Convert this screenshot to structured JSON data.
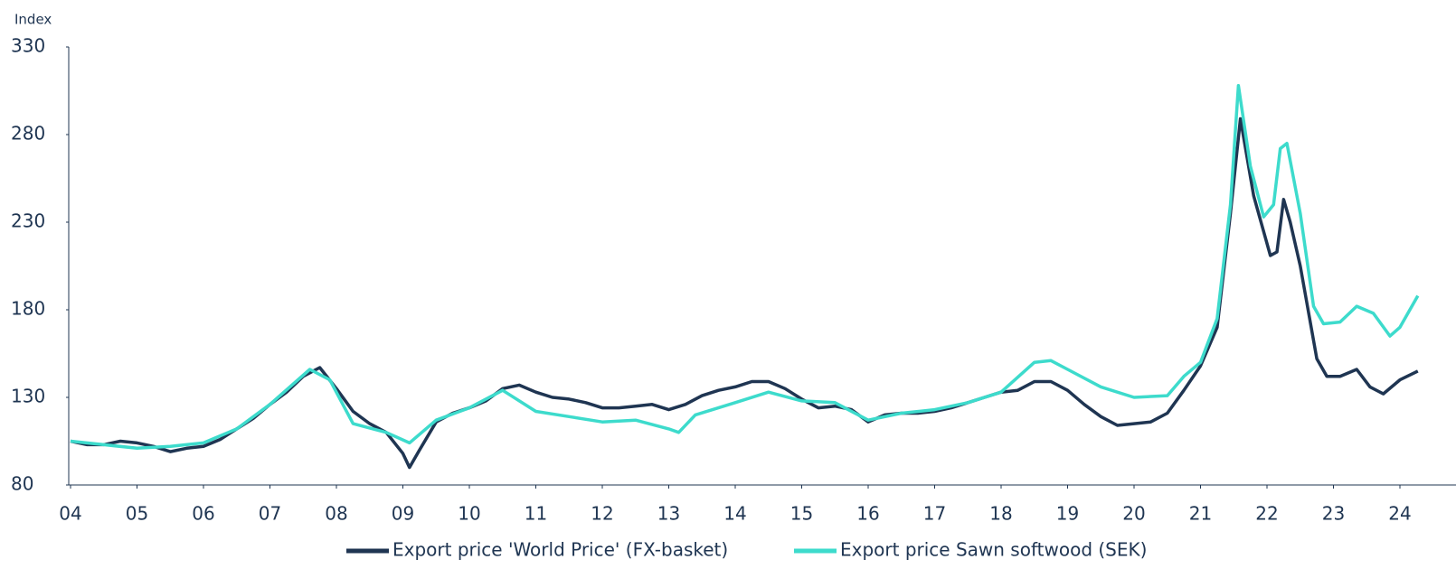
{
  "chart_data": {
    "type": "line",
    "y_axis_label": "Index",
    "ylim": [
      80,
      330
    ],
    "yticks": [
      80,
      130,
      180,
      230,
      280,
      330
    ],
    "xlim": [
      2004,
      2024.3
    ],
    "xticks": [
      {
        "value": 2004,
        "label": "04"
      },
      {
        "value": 2005,
        "label": "05"
      },
      {
        "value": 2006,
        "label": "06"
      },
      {
        "value": 2007,
        "label": "07"
      },
      {
        "value": 2008,
        "label": "08"
      },
      {
        "value": 2009,
        "label": "09"
      },
      {
        "value": 2010,
        "label": "10"
      },
      {
        "value": 2011,
        "label": "11"
      },
      {
        "value": 2012,
        "label": "12"
      },
      {
        "value": 2013,
        "label": "13"
      },
      {
        "value": 2014,
        "label": "14"
      },
      {
        "value": 2015,
        "label": "15"
      },
      {
        "value": 2016,
        "label": "16"
      },
      {
        "value": 2017,
        "label": "17"
      },
      {
        "value": 2018,
        "label": "18"
      },
      {
        "value": 2019,
        "label": "19"
      },
      {
        "value": 2020,
        "label": "20"
      },
      {
        "value": 2021,
        "label": "21"
      },
      {
        "value": 2022,
        "label": "22"
      },
      {
        "value": 2023,
        "label": "23"
      },
      {
        "value": 2024,
        "label": "24"
      }
    ],
    "legend": "bottom",
    "series": [
      {
        "name": "Export price 'World Price' (FX-basket)",
        "color": "#1f3552",
        "x": [
          2004,
          2004.25,
          2004.5,
          2004.75,
          2005,
          2005.25,
          2005.5,
          2005.75,
          2006,
          2006.25,
          2006.5,
          2006.75,
          2007,
          2007.25,
          2007.5,
          2007.75,
          2008,
          2008.25,
          2008.5,
          2008.75,
          2009,
          2009.1,
          2009.25,
          2009.5,
          2009.75,
          2010,
          2010.25,
          2010.5,
          2010.75,
          2011,
          2011.25,
          2011.5,
          2011.75,
          2012,
          2012.25,
          2012.5,
          2012.75,
          2013,
          2013.25,
          2013.5,
          2013.75,
          2014,
          2014.25,
          2014.5,
          2014.75,
          2015,
          2015.25,
          2015.5,
          2015.75,
          2016,
          2016.25,
          2016.5,
          2016.75,
          2017,
          2017.25,
          2017.5,
          2017.75,
          2018,
          2018.25,
          2018.5,
          2018.75,
          2019,
          2019.25,
          2019.5,
          2019.75,
          2020,
          2020.25,
          2020.5,
          2020.75,
          2021,
          2021.25,
          2021.45,
          2021.6,
          2021.8,
          2022.05,
          2022.15,
          2022.25,
          2022.35,
          2022.5,
          2022.75,
          2022.9,
          2023.1,
          2023.35,
          2023.55,
          2023.75,
          2024,
          2024.27
        ],
        "values": [
          105,
          103,
          103,
          105,
          104,
          102,
          99,
          101,
          102,
          106,
          112,
          118,
          126,
          133,
          142,
          147,
          135,
          122,
          115,
          110,
          98,
          90,
          100,
          116,
          121,
          124,
          128,
          135,
          137,
          133,
          130,
          129,
          127,
          124,
          124,
          125,
          126,
          123,
          126,
          131,
          134,
          136,
          139,
          139,
          135,
          129,
          124,
          125,
          123,
          116,
          120,
          121,
          121,
          122,
          124,
          127,
          130,
          133,
          134,
          139,
          139,
          134,
          126,
          119,
          114,
          115,
          116,
          121,
          134,
          148,
          170,
          235,
          289,
          245,
          211,
          213,
          243,
          230,
          205,
          152,
          142,
          142,
          146,
          136,
          132,
          140,
          145
        ]
      },
      {
        "name": "Export price Sawn softwood (SEK)",
        "color": "#3ddbcc",
        "x": [
          2004,
          2004.5,
          2005,
          2005.5,
          2006,
          2006.5,
          2007,
          2007.3,
          2007.6,
          2007.9,
          2008.25,
          2008.75,
          2009.1,
          2009.5,
          2010,
          2010.5,
          2011,
          2011.5,
          2012,
          2012.5,
          2013,
          2013.15,
          2013.4,
          2014,
          2014.5,
          2015,
          2015.5,
          2016,
          2016.5,
          2017,
          2017.5,
          2018,
          2018.5,
          2018.75,
          2019,
          2019.5,
          2020,
          2020.5,
          2020.75,
          2021,
          2021.25,
          2021.45,
          2021.57,
          2021.75,
          2021.95,
          2022.1,
          2022.2,
          2022.3,
          2022.5,
          2022.7,
          2022.85,
          2023.1,
          2023.35,
          2023.6,
          2023.85,
          2024,
          2024.27
        ],
        "values": [
          105,
          103,
          101,
          102,
          104,
          112,
          126,
          136,
          146,
          140,
          115,
          110,
          104,
          117,
          124,
          134,
          122,
          119,
          116,
          117,
          112,
          110,
          120,
          127,
          133,
          128,
          127,
          117,
          121,
          123,
          127,
          133,
          150,
          151,
          146,
          136,
          130,
          131,
          142,
          150,
          175,
          240,
          308,
          262,
          233,
          240,
          272,
          275,
          235,
          182,
          172,
          173,
          182,
          178,
          165,
          170,
          188
        ]
      }
    ]
  }
}
